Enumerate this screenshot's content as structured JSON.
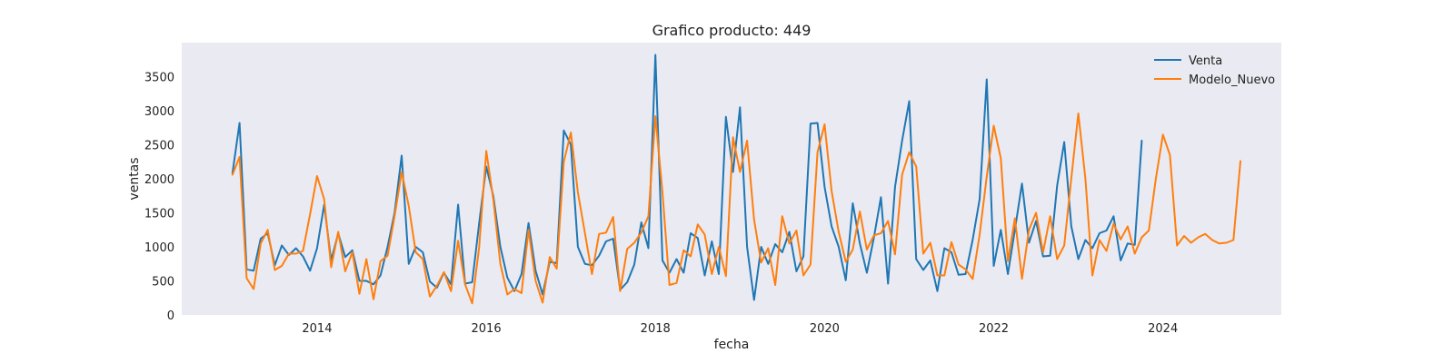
{
  "chart_data": {
    "type": "line",
    "title": "Grafico producto: 449",
    "xlabel": "fecha",
    "ylabel": "ventas",
    "xlim": [
      2012.4,
      2025.4
    ],
    "ylim": [
      0,
      4000
    ],
    "x_ticks": [
      2014,
      2016,
      2018,
      2020,
      2022,
      2024
    ],
    "y_ticks": [
      0,
      500,
      1000,
      1500,
      2000,
      2500,
      3000,
      3500
    ],
    "legend_position": "top-right",
    "grid": false,
    "x_start": 2013.0,
    "x_step_months": 1,
    "series": [
      {
        "name": "Venta",
        "color": "#1f77b4",
        "values": [
          2080,
          2820,
          670,
          650,
          1120,
          1200,
          730,
          1020,
          880,
          980,
          860,
          650,
          980,
          1620,
          800,
          1200,
          850,
          950,
          500,
          500,
          450,
          580,
          1000,
          1500,
          2340,
          750,
          1000,
          920,
          490,
          400,
          620,
          450,
          1620,
          460,
          480,
          1350,
          2180,
          1750,
          1000,
          550,
          350,
          600,
          1350,
          650,
          300,
          780,
          760,
          2710,
          2500,
          1000,
          750,
          730,
          870,
          1080,
          1120,
          370,
          480,
          740,
          1360,
          980,
          3820,
          800,
          620,
          820,
          620,
          1200,
          1130,
          580,
          1080,
          600,
          2910,
          2100,
          3050,
          1000,
          220,
          1000,
          750,
          1040,
          920,
          1220,
          640,
          860,
          2810,
          2820,
          1880,
          1300,
          1000,
          510,
          1640,
          1050,
          620,
          1140,
          1730,
          460,
          1880,
          2560,
          3140,
          820,
          660,
          800,
          350,
          980,
          920,
          590,
          600,
          1100,
          1700,
          3460,
          720,
          1250,
          600,
          1250,
          1930,
          1060,
          1380,
          860,
          870,
          1900,
          2540,
          1300,
          820,
          1100,
          980,
          1200,
          1240,
          1450,
          800,
          1050,
          1030,
          2560
        ]
      },
      {
        "name": "Modelo_Nuevo",
        "color": "#ff7f0e",
        "values": [
          2060,
          2320,
          540,
          380,
          1050,
          1250,
          660,
          720,
          900,
          900,
          940,
          1480,
          2040,
          1700,
          700,
          1220,
          640,
          920,
          310,
          820,
          230,
          790,
          870,
          1450,
          2100,
          1600,
          920,
          820,
          270,
          430,
          630,
          350,
          1090,
          450,
          170,
          1000,
          2410,
          1700,
          750,
          300,
          380,
          320,
          1250,
          500,
          180,
          850,
          680,
          2250,
          2680,
          1800,
          1200,
          600,
          1190,
          1210,
          1440,
          350,
          970,
          1060,
          1210,
          1450,
          2920,
          1800,
          440,
          470,
          950,
          860,
          1330,
          1180,
          600,
          1000,
          570,
          2610,
          2100,
          2560,
          1400,
          770,
          980,
          440,
          1450,
          1050,
          1240,
          580,
          740,
          2390,
          2800,
          1820,
          1220,
          780,
          960,
          1520,
          960,
          1170,
          1200,
          1380,
          890,
          2060,
          2390,
          2180,
          900,
          1060,
          580,
          580,
          1070,
          740,
          670,
          530,
          1180,
          2030,
          2780,
          2300,
          790,
          1420,
          530,
          1250,
          1500,
          920,
          1450,
          820,
          1020,
          2010,
          2960,
          2000,
          580,
          1100,
          940,
          1340,
          1110,
          1300,
          900,
          1140,
          1240,
          2000,
          2650,
          2350,
          1020,
          1160,
          1060,
          1140,
          1190,
          1100,
          1050,
          1060,
          1100,
          2260
        ]
      }
    ]
  }
}
